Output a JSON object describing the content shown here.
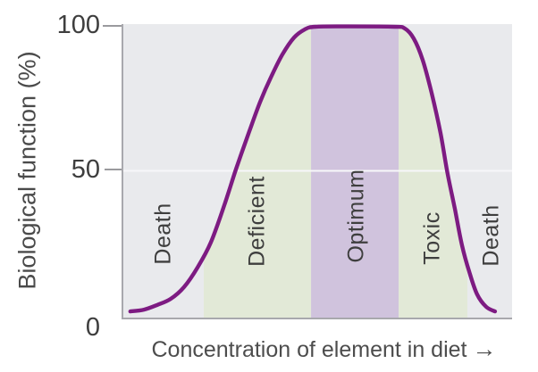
{
  "colors": {
    "curve": "#7d1b82",
    "band_green": "#e2e9d7",
    "band_purple": "#d0c3dd",
    "plot_bg": "#e9eaed",
    "axis": "#a8a8ad",
    "gridline": "#f7f7f9",
    "text": "#3e3e3e"
  },
  "chart_data": {
    "type": "area",
    "title": "",
    "xlabel": "Concentration of element in diet",
    "xlabel_arrow": "→",
    "ylabel": "Biological function (%)",
    "ylim": [
      0,
      100
    ],
    "y_tick_labels": [
      "100",
      "50",
      "0"
    ],
    "y_tick_values": [
      100,
      50,
      0
    ],
    "grid_y_pct": [
      50
    ],
    "legend": "none",
    "zones": [
      {
        "label": "Death",
        "x_start_pct": 0,
        "x_end_pct": 20.7,
        "shaded": false,
        "color": null
      },
      {
        "label": "Deficient",
        "x_start_pct": 20.7,
        "x_end_pct": 48.3,
        "shaded": true,
        "color": "green"
      },
      {
        "label": "Optimum",
        "x_start_pct": 48.3,
        "x_end_pct": 70.8,
        "shaded": true,
        "color": "purple"
      },
      {
        "label": "Toxic",
        "x_start_pct": 70.8,
        "x_end_pct": 88.5,
        "shaded": true,
        "color": "green"
      },
      {
        "label": "Death",
        "x_start_pct": 88.5,
        "x_end_pct": 100,
        "shaded": false,
        "color": null
      }
    ],
    "curve": {
      "name": "Biological function",
      "shading_rule": "colored zone bands fill only the area under the curve",
      "points_pct": [
        [
          1.8,
          2.1
        ],
        [
          5.3,
          2.7
        ],
        [
          8.7,
          4.3
        ],
        [
          12.2,
          6.4
        ],
        [
          15.6,
          10.4
        ],
        [
          19.1,
          17.1
        ],
        [
          22.5,
          25.6
        ],
        [
          26.0,
          38.4
        ],
        [
          29.0,
          50.6
        ],
        [
          32.4,
          63.4
        ],
        [
          35.2,
          73.5
        ],
        [
          37.9,
          81.7
        ],
        [
          40.9,
          89.6
        ],
        [
          43.9,
          95.4
        ],
        [
          46.7,
          98.2
        ],
        [
          49.4,
          99.1
        ],
        [
          58.0,
          99.2
        ],
        [
          69.7,
          99.1
        ],
        [
          72.4,
          98.5
        ],
        [
          74.7,
          95.1
        ],
        [
          77.0,
          87.8
        ],
        [
          79.3,
          76.5
        ],
        [
          81.6,
          62.8
        ],
        [
          83.4,
          49.1
        ],
        [
          85.3,
          36.9
        ],
        [
          87.1,
          24.7
        ],
        [
          89.0,
          15.5
        ],
        [
          91.0,
          7.9
        ],
        [
          93.3,
          3.7
        ],
        [
          95.6,
          2.1
        ]
      ]
    }
  }
}
